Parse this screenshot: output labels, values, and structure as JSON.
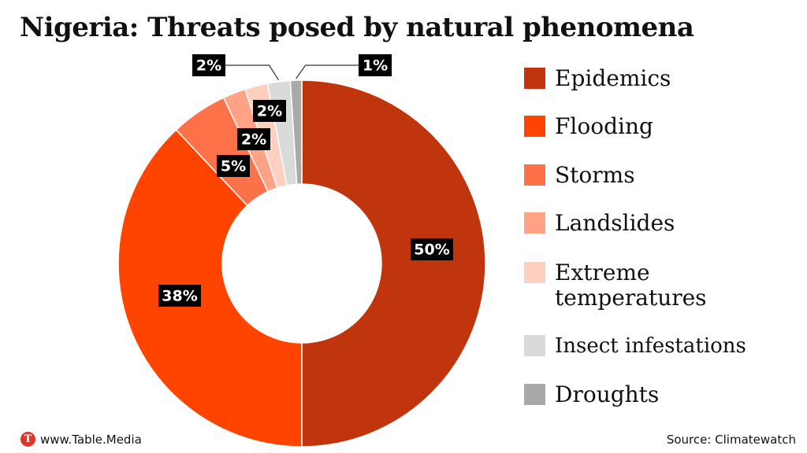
{
  "title": "Nigeria: Threats posed by natural phenomena",
  "chart_data": {
    "type": "pie",
    "variant": "donut",
    "title": "Nigeria: Threats posed by natural phenomena",
    "unit": "%",
    "legend_position": "right",
    "slices": [
      {
        "name": "Epidemics",
        "value": 50,
        "label": "50%",
        "color": "#c0350d"
      },
      {
        "name": "Flooding",
        "value": 38,
        "label": "38%",
        "color": "#ff4400"
      },
      {
        "name": "Storms",
        "value": 5,
        "label": "5%",
        "color": "#ff7148"
      },
      {
        "name": "Landslides",
        "value": 2,
        "label": "2%",
        "color": "#ffa286"
      },
      {
        "name": "Extreme temperatures",
        "value": 2,
        "label": "2%",
        "color": "#ffd0c0"
      },
      {
        "name": "Insect infestations",
        "value": 2,
        "label": "2%",
        "color": "#dadada"
      },
      {
        "name": "Droughts",
        "value": 1,
        "label": "1%",
        "color": "#a9a9a9"
      }
    ]
  },
  "legend": [
    {
      "label": "Epidemics",
      "color": "#c0350d"
    },
    {
      "label": "Flooding",
      "color": "#ff4400"
    },
    {
      "label": "Storms",
      "color": "#ff7148"
    },
    {
      "label": "Landslides",
      "color": "#ffa286"
    },
    {
      "label": "Extreme temperatures",
      "color": "#ffd0c0"
    },
    {
      "label": "Insect infestations",
      "color": "#dadada"
    },
    {
      "label": "Droughts",
      "color": "#a9a9a9"
    }
  ],
  "footer": {
    "brand_icon_letter": "T",
    "brand_text": "www.Table.Media",
    "source": "Source: Climatewatch",
    "brand_color": "#d9372b"
  }
}
